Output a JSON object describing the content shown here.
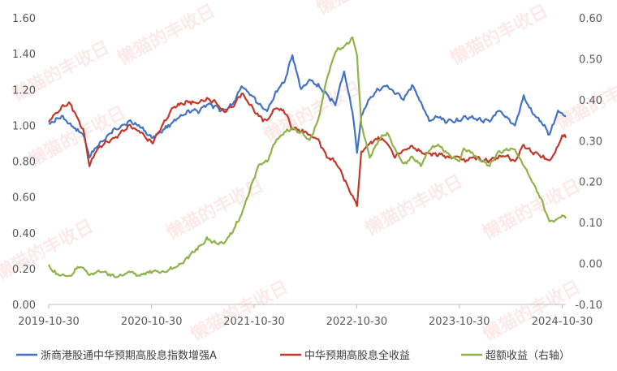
{
  "chart_data": {
    "type": "line",
    "title": "",
    "xlabel": "",
    "ylabel": "",
    "x_tick_labels": [
      "2019-10-30",
      "2020-10-30",
      "2021-10-30",
      "2022-10-30",
      "2023-10-30",
      "2024-10-30"
    ],
    "y_left_ticks": [
      "0.00",
      "0.20",
      "0.40",
      "0.60",
      "0.80",
      "1.00",
      "1.20",
      "1.40",
      "1.60"
    ],
    "y_right_ticks": [
      "-0.10",
      "0.00",
      "0.10",
      "0.20",
      "0.30",
      "0.40",
      "0.50",
      "0.60"
    ],
    "ylim_left": [
      0,
      1.6
    ],
    "ylim_right": [
      -0.1,
      0.6
    ],
    "xlim": [
      "2019-10-30",
      "2024-11-12"
    ],
    "grid": false,
    "legend_position": "bottom",
    "watermark_text": "懒猫的丰收日",
    "series": [
      {
        "name": "浙商港股通中华预期高股息指数增强A",
        "axis": "left",
        "color": "#4472C4",
        "x": [
          "2019-10-30",
          "2019-11-15",
          "2019-12-15",
          "2020-01-15",
          "2020-02-10",
          "2020-03-01",
          "2020-03-23",
          "2020-04-15",
          "2020-05-15",
          "2020-06-15",
          "2020-07-15",
          "2020-08-15",
          "2020-09-15",
          "2020-10-30",
          "2020-11-20",
          "2020-12-15",
          "2021-01-15",
          "2021-02-15",
          "2021-03-15",
          "2021-04-15",
          "2021-05-15",
          "2021-06-15",
          "2021-07-15",
          "2021-08-15",
          "2021-09-15",
          "2021-10-15",
          "2021-11-15",
          "2021-12-15",
          "2022-01-15",
          "2022-02-15",
          "2022-03-15",
          "2022-04-15",
          "2022-05-15",
          "2022-06-15",
          "2022-07-15",
          "2022-08-15",
          "2022-09-15",
          "2022-10-15",
          "2022-10-31",
          "2022-11-15",
          "2022-12-15",
          "2023-01-15",
          "2023-02-15",
          "2023-03-15",
          "2023-04-15",
          "2023-05-15",
          "2023-06-15",
          "2023-07-15",
          "2023-08-15",
          "2023-09-15",
          "2023-10-30",
          "2023-11-15",
          "2023-12-15",
          "2024-01-15",
          "2024-02-15",
          "2024-03-15",
          "2024-04-15",
          "2024-05-15",
          "2024-06-15",
          "2024-07-15",
          "2024-08-15",
          "2024-09-15",
          "2024-10-15",
          "2024-10-30",
          "2024-11-12"
        ],
        "values": [
          1.01,
          1.02,
          1.05,
          1.0,
          0.97,
          0.95,
          0.82,
          0.88,
          0.92,
          0.97,
          1.0,
          1.02,
          1.0,
          0.93,
          0.95,
          0.98,
          1.02,
          1.05,
          1.08,
          1.08,
          1.12,
          1.1,
          1.08,
          1.12,
          1.22,
          1.18,
          1.12,
          1.08,
          1.18,
          1.25,
          1.39,
          1.2,
          1.25,
          1.22,
          1.17,
          1.12,
          1.3,
          1.08,
          0.84,
          1.05,
          1.15,
          1.2,
          1.22,
          1.18,
          1.15,
          1.22,
          1.13,
          1.02,
          1.05,
          1.02,
          1.03,
          1.05,
          1.04,
          1.03,
          1.02,
          1.08,
          1.04,
          1.0,
          1.16,
          1.07,
          1.02,
          0.95,
          1.08,
          1.07,
          1.05
        ]
      },
      {
        "name": "中华预期高股息全收益",
        "axis": "left",
        "color": "#C0392B",
        "x": [
          "2019-10-30",
          "2019-11-15",
          "2019-12-15",
          "2020-01-15",
          "2020-02-10",
          "2020-03-01",
          "2020-03-23",
          "2020-04-15",
          "2020-05-15",
          "2020-06-15",
          "2020-07-15",
          "2020-08-15",
          "2020-09-15",
          "2020-10-30",
          "2020-11-20",
          "2020-12-15",
          "2021-01-15",
          "2021-02-15",
          "2021-03-15",
          "2021-04-15",
          "2021-05-15",
          "2021-06-15",
          "2021-07-15",
          "2021-08-15",
          "2021-09-15",
          "2021-10-15",
          "2021-11-15",
          "2021-12-15",
          "2022-01-15",
          "2022-02-15",
          "2022-03-15",
          "2022-04-15",
          "2022-05-15",
          "2022-06-15",
          "2022-07-15",
          "2022-08-15",
          "2022-09-15",
          "2022-10-15",
          "2022-10-31",
          "2022-11-15",
          "2022-12-15",
          "2023-01-15",
          "2023-02-15",
          "2023-03-15",
          "2023-04-15",
          "2023-05-15",
          "2023-06-15",
          "2023-07-15",
          "2023-08-15",
          "2023-09-15",
          "2023-10-30",
          "2023-11-15",
          "2023-12-15",
          "2024-01-15",
          "2024-02-15",
          "2024-03-15",
          "2024-04-15",
          "2024-05-15",
          "2024-06-15",
          "2024-07-15",
          "2024-08-15",
          "2024-09-15",
          "2024-10-15",
          "2024-10-30",
          "2024-11-12"
        ],
        "values": [
          1.02,
          1.05,
          1.1,
          1.12,
          1.03,
          0.98,
          0.77,
          0.86,
          0.9,
          0.92,
          0.96,
          1.0,
          0.97,
          0.9,
          0.95,
          1.02,
          1.1,
          1.12,
          1.13,
          1.12,
          1.15,
          1.13,
          1.08,
          1.1,
          1.18,
          1.12,
          1.05,
          1.02,
          1.1,
          1.08,
          0.98,
          0.97,
          0.95,
          0.92,
          0.82,
          0.8,
          0.7,
          0.6,
          0.55,
          0.85,
          0.9,
          0.93,
          0.9,
          0.83,
          0.86,
          0.88,
          0.85,
          0.84,
          0.84,
          0.82,
          0.82,
          0.8,
          0.82,
          0.81,
          0.8,
          0.82,
          0.83,
          0.8,
          0.89,
          0.85,
          0.83,
          0.8,
          0.88,
          0.95,
          0.93
        ]
      },
      {
        "name": "超额收益（右轴）",
        "axis": "right",
        "color": "#8FB34A",
        "x": [
          "2019-10-30",
          "2019-11-15",
          "2019-12-15",
          "2020-01-15",
          "2020-02-10",
          "2020-03-01",
          "2020-03-23",
          "2020-04-15",
          "2020-05-15",
          "2020-06-15",
          "2020-07-15",
          "2020-08-15",
          "2020-09-15",
          "2020-10-30",
          "2020-11-20",
          "2020-12-15",
          "2021-01-15",
          "2021-02-15",
          "2021-03-15",
          "2021-04-15",
          "2021-05-15",
          "2021-06-15",
          "2021-07-15",
          "2021-08-15",
          "2021-09-15",
          "2021-10-15",
          "2021-11-15",
          "2021-12-15",
          "2022-01-15",
          "2022-02-15",
          "2022-03-15",
          "2022-04-15",
          "2022-05-15",
          "2022-06-15",
          "2022-07-15",
          "2022-08-15",
          "2022-09-15",
          "2022-10-15",
          "2022-10-31",
          "2022-11-15",
          "2022-12-15",
          "2023-01-15",
          "2023-02-15",
          "2023-03-15",
          "2023-04-15",
          "2023-05-15",
          "2023-06-15",
          "2023-07-15",
          "2023-08-15",
          "2023-09-15",
          "2023-10-30",
          "2023-11-15",
          "2023-12-15",
          "2024-01-15",
          "2024-02-15",
          "2024-03-15",
          "2024-04-15",
          "2024-05-15",
          "2024-06-15",
          "2024-07-15",
          "2024-08-15",
          "2024-09-15",
          "2024-10-15",
          "2024-10-30",
          "2024-11-12"
        ],
        "values": [
          0.0,
          -0.02,
          -0.03,
          -0.03,
          -0.01,
          -0.01,
          -0.03,
          -0.02,
          -0.02,
          -0.03,
          -0.03,
          -0.02,
          -0.03,
          -0.02,
          -0.02,
          -0.02,
          -0.01,
          0.0,
          0.02,
          0.04,
          0.06,
          0.05,
          0.05,
          0.08,
          0.12,
          0.18,
          0.24,
          0.25,
          0.3,
          0.32,
          0.33,
          0.32,
          0.3,
          0.35,
          0.45,
          0.52,
          0.53,
          0.55,
          0.51,
          0.34,
          0.26,
          0.3,
          0.32,
          0.28,
          0.24,
          0.26,
          0.24,
          0.28,
          0.29,
          0.27,
          0.25,
          0.28,
          0.27,
          0.25,
          0.24,
          0.27,
          0.28,
          0.28,
          0.24,
          0.2,
          0.16,
          0.1,
          0.11,
          0.12,
          0.11
        ]
      }
    ]
  }
}
